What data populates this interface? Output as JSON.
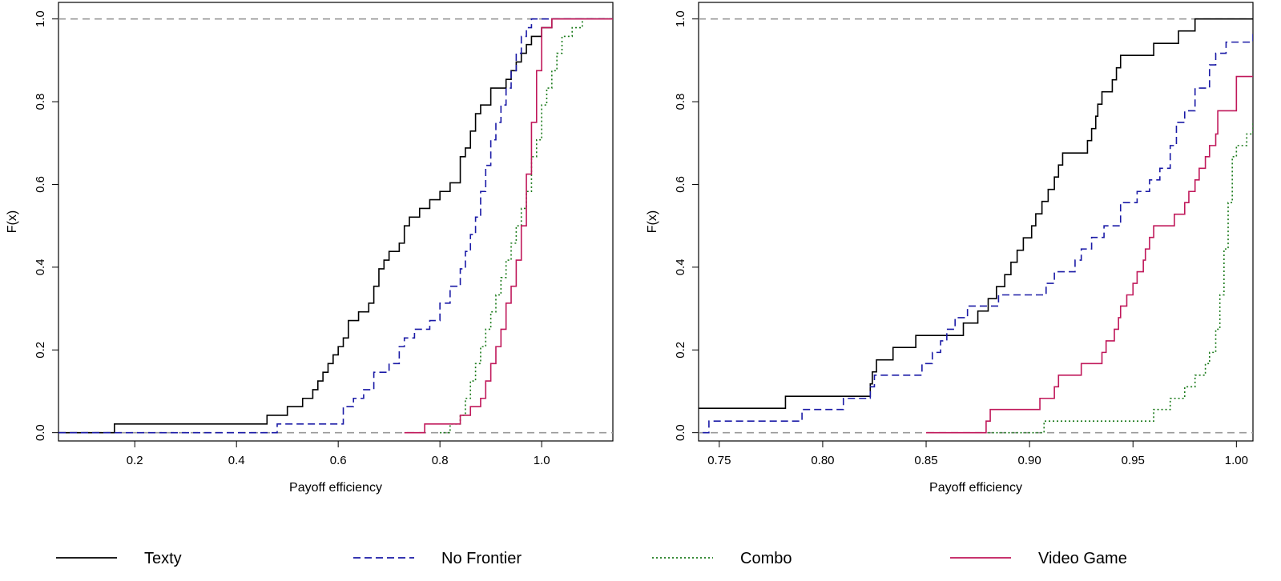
{
  "colors": {
    "Texty": "#000000",
    "No Frontier": "#1a1aa6",
    "Combo": "#1a7a1a",
    "Video Game": "#c0185a",
    "reference": "#999999"
  },
  "legend": {
    "items": [
      {
        "name": "Texty",
        "style": "solid"
      },
      {
        "name": "No Frontier",
        "style": "dashed"
      },
      {
        "name": "Combo",
        "style": "dotted"
      },
      {
        "name": "Video Game",
        "style": "solid"
      }
    ]
  },
  "chart_data": [
    {
      "type": "line",
      "step": true,
      "xlabel": "Payoff efficiency",
      "ylabel": "F(x)",
      "xlim": [
        0.05,
        1.14
      ],
      "ylim": [
        -0.02,
        1.04
      ],
      "xticks": [
        "0.2",
        "0.4",
        "0.6",
        "0.8",
        "1.0"
      ],
      "yticks": [
        "0.0",
        "0.2",
        "0.4",
        "0.6",
        "0.8",
        "1.0"
      ],
      "reference_lines": [
        0.0,
        1.0
      ],
      "series": [
        {
          "name": "Texty",
          "x": [
            0.05,
            0.16,
            0.46,
            0.5,
            0.53,
            0.55,
            0.56,
            0.57,
            0.58,
            0.59,
            0.6,
            0.61,
            0.62,
            0.64,
            0.66,
            0.67,
            0.68,
            0.69,
            0.7,
            0.72,
            0.73,
            0.74,
            0.76,
            0.78,
            0.8,
            0.82,
            0.84,
            0.85,
            0.86,
            0.87,
            0.88,
            0.9,
            0.93,
            0.94,
            0.95,
            0.96,
            0.97,
            0.98,
            1.0,
            1.02,
            1.14
          ],
          "y": [
            0.0,
            0.021,
            0.042,
            0.063,
            0.083,
            0.104,
            0.125,
            0.146,
            0.167,
            0.188,
            0.208,
            0.229,
            0.271,
            0.292,
            0.313,
            0.354,
            0.396,
            0.417,
            0.438,
            0.458,
            0.5,
            0.521,
            0.542,
            0.563,
            0.583,
            0.604,
            0.667,
            0.688,
            0.729,
            0.771,
            0.792,
            0.833,
            0.854,
            0.875,
            0.896,
            0.917,
            0.938,
            0.958,
            0.979,
            1.0,
            1.0
          ]
        },
        {
          "name": "No Frontier",
          "x": [
            0.05,
            0.48,
            0.61,
            0.63,
            0.65,
            0.67,
            0.7,
            0.72,
            0.73,
            0.75,
            0.78,
            0.8,
            0.82,
            0.84,
            0.85,
            0.86,
            0.87,
            0.88,
            0.89,
            0.9,
            0.91,
            0.92,
            0.93,
            0.94,
            0.95,
            0.96,
            0.97,
            0.98,
            1.14
          ],
          "y": [
            0.0,
            0.021,
            0.063,
            0.083,
            0.104,
            0.146,
            0.167,
            0.208,
            0.229,
            0.25,
            0.271,
            0.313,
            0.354,
            0.396,
            0.438,
            0.479,
            0.521,
            0.583,
            0.646,
            0.708,
            0.75,
            0.792,
            0.833,
            0.875,
            0.917,
            0.958,
            0.979,
            1.0,
            1.0
          ]
        },
        {
          "name": "Combo",
          "x": [
            0.8,
            0.82,
            0.84,
            0.85,
            0.86,
            0.87,
            0.88,
            0.89,
            0.9,
            0.91,
            0.92,
            0.93,
            0.94,
            0.95,
            0.96,
            0.97,
            0.98,
            0.99,
            1.0,
            1.01,
            1.02,
            1.03,
            1.04,
            1.06,
            1.08,
            1.14
          ],
          "y": [
            0.0,
            0.021,
            0.042,
            0.083,
            0.125,
            0.167,
            0.208,
            0.25,
            0.292,
            0.333,
            0.375,
            0.417,
            0.458,
            0.5,
            0.542,
            0.583,
            0.667,
            0.708,
            0.792,
            0.833,
            0.875,
            0.917,
            0.958,
            0.979,
            1.0,
            1.0
          ]
        },
        {
          "name": "Video Game",
          "x": [
            0.73,
            0.77,
            0.84,
            0.86,
            0.88,
            0.89,
            0.9,
            0.91,
            0.92,
            0.93,
            0.94,
            0.95,
            0.96,
            0.97,
            0.98,
            0.99,
            1.0,
            1.02,
            1.14
          ],
          "y": [
            0.0,
            0.021,
            0.042,
            0.063,
            0.083,
            0.125,
            0.167,
            0.208,
            0.25,
            0.313,
            0.354,
            0.417,
            0.5,
            0.625,
            0.75,
            0.875,
            0.979,
            1.0,
            1.0
          ]
        }
      ]
    },
    {
      "type": "line",
      "step": true,
      "xlabel": "Payoff efficiency",
      "ylabel": "F(x)",
      "xlim": [
        0.74,
        1.008
      ],
      "ylim": [
        -0.02,
        1.04
      ],
      "xticks": [
        "0.75",
        "0.80",
        "0.85",
        "0.90",
        "0.95",
        "1.00"
      ],
      "yticks": [
        "0.0",
        "0.2",
        "0.4",
        "0.6",
        "0.8",
        "1.0"
      ],
      "reference_lines": [
        0.0,
        1.0
      ],
      "series": [
        {
          "name": "Texty",
          "x": [
            0.74,
            0.782,
            0.823,
            0.824,
            0.826,
            0.834,
            0.845,
            0.868,
            0.875,
            0.88,
            0.884,
            0.888,
            0.891,
            0.894,
            0.897,
            0.901,
            0.903,
            0.906,
            0.909,
            0.912,
            0.914,
            0.916,
            0.928,
            0.93,
            0.932,
            0.933,
            0.935,
            0.94,
            0.942,
            0.944,
            0.96,
            0.972,
            0.98,
            1.008
          ],
          "y": [
            0.059,
            0.088,
            0.118,
            0.147,
            0.176,
            0.206,
            0.235,
            0.265,
            0.294,
            0.324,
            0.353,
            0.382,
            0.412,
            0.441,
            0.471,
            0.5,
            0.529,
            0.559,
            0.588,
            0.618,
            0.647,
            0.676,
            0.706,
            0.735,
            0.765,
            0.794,
            0.824,
            0.853,
            0.882,
            0.912,
            0.941,
            0.971,
            1.0,
            1.0
          ]
        },
        {
          "name": "No Frontier",
          "x": [
            0.742,
            0.745,
            0.79,
            0.81,
            0.823,
            0.825,
            0.848,
            0.853,
            0.857,
            0.86,
            0.864,
            0.87,
            0.885,
            0.908,
            0.912,
            0.922,
            0.925,
            0.93,
            0.936,
            0.944,
            0.952,
            0.958,
            0.963,
            0.968,
            0.971,
            0.975,
            0.98,
            0.987,
            0.99,
            0.995,
            1.008
          ],
          "y": [
            0.0,
            0.028,
            0.056,
            0.083,
            0.111,
            0.139,
            0.167,
            0.194,
            0.222,
            0.25,
            0.278,
            0.306,
            0.333,
            0.361,
            0.389,
            0.417,
            0.444,
            0.472,
            0.5,
            0.556,
            0.583,
            0.611,
            0.639,
            0.694,
            0.75,
            0.778,
            0.833,
            0.889,
            0.917,
            0.944,
            0.972
          ]
        },
        {
          "name": "Combo",
          "x": [
            0.88,
            0.907,
            0.96,
            0.968,
            0.975,
            0.98,
            0.985,
            0.987,
            0.99,
            0.992,
            0.994,
            0.996,
            0.998,
            1.0,
            1.005,
            1.008
          ],
          "y": [
            0.0,
            0.028,
            0.056,
            0.083,
            0.111,
            0.139,
            0.167,
            0.194,
            0.25,
            0.333,
            0.444,
            0.556,
            0.667,
            0.694,
            0.722,
            0.75
          ]
        },
        {
          "name": "Video Game",
          "x": [
            0.85,
            0.879,
            0.881,
            0.905,
            0.912,
            0.914,
            0.925,
            0.935,
            0.937,
            0.941,
            0.943,
            0.944,
            0.947,
            0.95,
            0.952,
            0.955,
            0.956,
            0.958,
            0.96,
            0.97,
            0.975,
            0.977,
            0.98,
            0.982,
            0.985,
            0.987,
            0.99,
            0.991,
            1.0,
            1.008
          ],
          "y": [
            0.0,
            0.028,
            0.056,
            0.083,
            0.111,
            0.139,
            0.167,
            0.194,
            0.222,
            0.25,
            0.278,
            0.306,
            0.333,
            0.361,
            0.389,
            0.417,
            0.444,
            0.472,
            0.5,
            0.528,
            0.556,
            0.583,
            0.611,
            0.639,
            0.667,
            0.694,
            0.722,
            0.778,
            0.861,
            0.861
          ]
        }
      ]
    }
  ]
}
